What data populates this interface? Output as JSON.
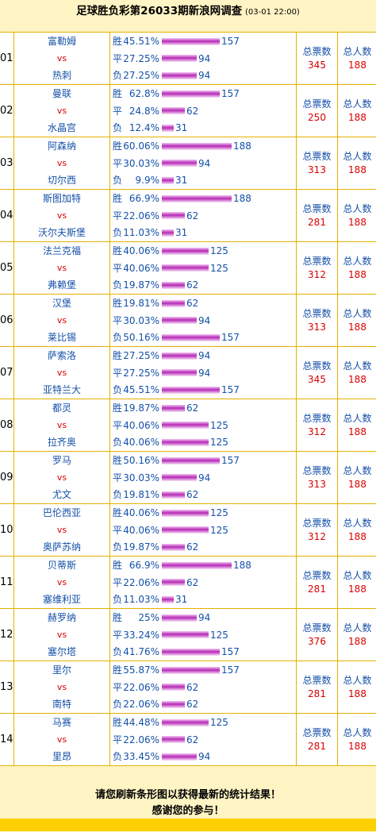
{
  "header": {
    "title": "足球胜负彩第26033期新浪网调查",
    "datetime": "(03-01 22:00)"
  },
  "labels": {
    "win": "胜",
    "draw": "平",
    "lose": "负",
    "vs": "vs",
    "total_votes": "总票数",
    "total_people": "总人数"
  },
  "matches": [
    {
      "no": "01",
      "home": "富勒姆",
      "away": "热刺",
      "win": {
        "pct": "45.51%",
        "count": "157"
      },
      "draw": {
        "pct": "27.25%",
        "count": "94"
      },
      "lose": {
        "pct": "27.25%",
        "count": "94"
      },
      "votes": "345",
      "people": "188"
    },
    {
      "no": "02",
      "home": "曼联",
      "away": "水晶宫",
      "win": {
        "pct": "62.8%",
        "count": "157"
      },
      "draw": {
        "pct": "24.8%",
        "count": "62"
      },
      "lose": {
        "pct": "12.4%",
        "count": "31"
      },
      "votes": "250",
      "people": "188"
    },
    {
      "no": "03",
      "home": "阿森纳",
      "away": "切尔西",
      "win": {
        "pct": "60.06%",
        "count": "188"
      },
      "draw": {
        "pct": "30.03%",
        "count": "94"
      },
      "lose": {
        "pct": "9.9%",
        "count": "31"
      },
      "votes": "313",
      "people": "188"
    },
    {
      "no": "04",
      "home": "斯图加特",
      "away": "沃尔夫斯堡",
      "win": {
        "pct": "66.9%",
        "count": "188"
      },
      "draw": {
        "pct": "22.06%",
        "count": "62"
      },
      "lose": {
        "pct": "11.03%",
        "count": "31"
      },
      "votes": "281",
      "people": "188"
    },
    {
      "no": "05",
      "home": "法兰克福",
      "away": "弗赖堡",
      "win": {
        "pct": "40.06%",
        "count": "125"
      },
      "draw": {
        "pct": "40.06%",
        "count": "125"
      },
      "lose": {
        "pct": "19.87%",
        "count": "62"
      },
      "votes": "312",
      "people": "188"
    },
    {
      "no": "06",
      "home": "汉堡",
      "away": "莱比锡",
      "win": {
        "pct": "19.81%",
        "count": "62"
      },
      "draw": {
        "pct": "30.03%",
        "count": "94"
      },
      "lose": {
        "pct": "50.16%",
        "count": "157"
      },
      "votes": "313",
      "people": "188"
    },
    {
      "no": "07",
      "home": "萨索洛",
      "away": "亚特兰大",
      "win": {
        "pct": "27.25%",
        "count": "94"
      },
      "draw": {
        "pct": "27.25%",
        "count": "94"
      },
      "lose": {
        "pct": "45.51%",
        "count": "157"
      },
      "votes": "345",
      "people": "188"
    },
    {
      "no": "08",
      "home": "都灵",
      "away": "拉齐奥",
      "win": {
        "pct": "19.87%",
        "count": "62"
      },
      "draw": {
        "pct": "40.06%",
        "count": "125"
      },
      "lose": {
        "pct": "40.06%",
        "count": "125"
      },
      "votes": "312",
      "people": "188"
    },
    {
      "no": "09",
      "home": "罗马",
      "away": "尤文",
      "win": {
        "pct": "50.16%",
        "count": "157"
      },
      "draw": {
        "pct": "30.03%",
        "count": "94"
      },
      "lose": {
        "pct": "19.81%",
        "count": "62"
      },
      "votes": "313",
      "people": "188"
    },
    {
      "no": "10",
      "home": "巴伦西亚",
      "away": "奥萨苏纳",
      "win": {
        "pct": "40.06%",
        "count": "125"
      },
      "draw": {
        "pct": "40.06%",
        "count": "125"
      },
      "lose": {
        "pct": "19.87%",
        "count": "62"
      },
      "votes": "312",
      "people": "188"
    },
    {
      "no": "11",
      "home": "贝蒂斯",
      "away": "塞维利亚",
      "win": {
        "pct": "66.9%",
        "count": "188"
      },
      "draw": {
        "pct": "22.06%",
        "count": "62"
      },
      "lose": {
        "pct": "11.03%",
        "count": "31"
      },
      "votes": "281",
      "people": "188"
    },
    {
      "no": "12",
      "home": "赫罗纳",
      "away": "塞尔塔",
      "win": {
        "pct": "25%",
        "count": "94"
      },
      "draw": {
        "pct": "33.24%",
        "count": "125"
      },
      "lose": {
        "pct": "41.76%",
        "count": "157"
      },
      "votes": "376",
      "people": "188"
    },
    {
      "no": "13",
      "home": "里尔",
      "away": "南特",
      "win": {
        "pct": "55.87%",
        "count": "157"
      },
      "draw": {
        "pct": "22.06%",
        "count": "62"
      },
      "lose": {
        "pct": "22.06%",
        "count": "62"
      },
      "votes": "281",
      "people": "188"
    },
    {
      "no": "14",
      "home": "马赛",
      "away": "里昂",
      "win": {
        "pct": "44.48%",
        "count": "125"
      },
      "draw": {
        "pct": "22.06%",
        "count": "62"
      },
      "lose": {
        "pct": "33.45%",
        "count": "94"
      },
      "votes": "281",
      "people": "188"
    }
  ],
  "footer": {
    "line1": "请您刷新条形图以获得最新的统计结果！",
    "line2": "感谢您的参与！"
  },
  "colors": {
    "border": "#e4b200",
    "header_bg": "#fff4c4",
    "text_blue": "#1450a8",
    "text_red": "#d80000",
    "bar": "#b62ab6"
  }
}
